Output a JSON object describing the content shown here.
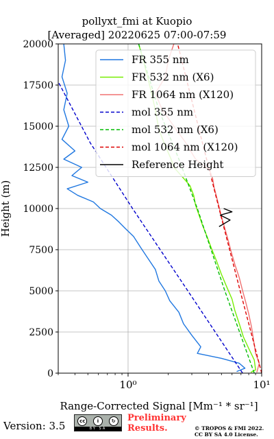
{
  "header": {
    "title": "pollyxt_fmi at Kuopio",
    "subtitle": "[Averaged] 20220625 07:00-07:59"
  },
  "footer": {
    "version": "Version: 3.5",
    "license_badge_text": "BY SA",
    "preliminary_line1": "Preliminary",
    "preliminary_line2": "Results.",
    "copyright_line1": "© TROPOS & FMI 2022.",
    "copyright_line2": "CC BY SA 4.0 License."
  },
  "chart_data": {
    "type": "line",
    "xlabel": "Range-Corrected Signal [Mm⁻¹ * sr⁻¹]",
    "ylabel": "Height (m)",
    "xscale": "log",
    "xlim": [
      0.3,
      10
    ],
    "ylim": [
      0,
      20000
    ],
    "x_ticks": [
      1,
      10
    ],
    "x_tick_labels": [
      "10⁰",
      "10¹"
    ],
    "y_ticks": [
      0,
      2500,
      5000,
      7500,
      10000,
      12500,
      15000,
      17500,
      20000
    ],
    "y_tick_labels": [
      "0",
      "2500",
      "5000",
      "7500",
      "10000",
      "12500",
      "15000",
      "17500",
      "20000"
    ],
    "grid": true,
    "legend_position": "top-right",
    "series": [
      {
        "name": "FR 355 nm",
        "style": "solid",
        "color": "#1f77e0",
        "points": [
          [
            6.5,
            100
          ],
          [
            7.5,
            300
          ],
          [
            6.8,
            600
          ],
          [
            5.0,
            900
          ],
          [
            3.3,
            1200
          ],
          [
            3.5,
            1600
          ],
          [
            3.0,
            2300
          ],
          [
            2.6,
            3000
          ],
          [
            2.4,
            3700
          ],
          [
            2.05,
            4400
          ],
          [
            1.9,
            5000
          ],
          [
            1.7,
            5600
          ],
          [
            1.6,
            6300
          ],
          [
            1.4,
            7000
          ],
          [
            1.25,
            7600
          ],
          [
            1.1,
            8300
          ],
          [
            0.95,
            8800
          ],
          [
            0.85,
            9200
          ],
          [
            0.75,
            9600
          ],
          [
            0.62,
            10000
          ],
          [
            0.55,
            10400
          ],
          [
            0.42,
            10800
          ],
          [
            0.35,
            11200
          ],
          [
            0.5,
            11600
          ],
          [
            0.38,
            12000
          ],
          [
            0.45,
            12500
          ],
          [
            0.33,
            13000
          ],
          [
            0.4,
            13500
          ],
          [
            0.32,
            14200
          ],
          [
            0.36,
            15000
          ],
          [
            0.33,
            16000
          ],
          [
            0.35,
            17000
          ],
          [
            0.32,
            18000
          ],
          [
            0.34,
            19000
          ],
          [
            0.33,
            20000
          ]
        ]
      },
      {
        "name": "FR 532 nm (X6)",
        "style": "solid",
        "color": "#77ee00",
        "points": [
          [
            8.3,
            50
          ],
          [
            9.0,
            200
          ],
          [
            8.8,
            800
          ],
          [
            8.0,
            1500
          ],
          [
            7.3,
            2200
          ],
          [
            6.8,
            3000
          ],
          [
            6.3,
            3800
          ],
          [
            6.0,
            4500
          ],
          [
            5.5,
            5200
          ],
          [
            5.0,
            6000
          ],
          [
            4.6,
            6800
          ],
          [
            4.2,
            7600
          ],
          [
            3.9,
            8300
          ],
          [
            3.6,
            9000
          ],
          [
            3.4,
            9600
          ],
          [
            3.2,
            10200
          ],
          [
            3.1,
            10800
          ],
          [
            2.9,
            11400
          ],
          [
            2.5,
            12000
          ],
          [
            2.2,
            12500
          ],
          [
            2.1,
            13000
          ],
          [
            1.9,
            13800
          ],
          [
            1.7,
            14800
          ],
          [
            1.6,
            16000
          ],
          [
            1.45,
            17500
          ],
          [
            1.3,
            19000
          ],
          [
            1.2,
            20000
          ]
        ]
      },
      {
        "name": "FR 1064 nm (X120)",
        "style": "solid",
        "color": "#f07070",
        "points": [
          [
            9.2,
            50
          ],
          [
            9.6,
            600
          ],
          [
            9.0,
            1200
          ],
          [
            8.7,
            2000
          ],
          [
            8.4,
            2800
          ],
          [
            8.0,
            3600
          ],
          [
            7.6,
            4300
          ],
          [
            7.2,
            5000
          ],
          [
            6.8,
            5800
          ],
          [
            6.3,
            6600
          ],
          [
            5.9,
            7400
          ],
          [
            5.6,
            8100
          ],
          [
            5.3,
            8800
          ],
          [
            5.0,
            9500
          ],
          [
            4.8,
            10100
          ],
          [
            4.6,
            10700
          ],
          [
            4.4,
            11300
          ],
          [
            4.3,
            11800
          ],
          [
            4.1,
            12300
          ],
          [
            3.2,
            13000
          ],
          [
            2.7,
            14000
          ],
          [
            2.2,
            15000
          ],
          [
            1.8,
            16000
          ],
          [
            1.6,
            17000
          ],
          [
            1.9,
            18000
          ],
          [
            2.0,
            19000
          ],
          [
            2.2,
            20000
          ]
        ]
      },
      {
        "name": "mol 355 nm",
        "style": "dashed",
        "color": "#0000cc",
        "points": [
          [
            7.2,
            0
          ],
          [
            2.8,
            5000
          ],
          [
            1.08,
            10000
          ],
          [
            0.52,
            14000
          ],
          [
            0.3,
            17700
          ]
        ]
      },
      {
        "name": "mol 532 nm (X6)",
        "style": "dashed",
        "color": "#00bb00",
        "points": [
          [
            8.8,
            0
          ],
          [
            5.3,
            5000
          ],
          [
            3.3,
            10000
          ],
          [
            2.4,
            13000
          ],
          [
            1.7,
            16000
          ],
          [
            1.2,
            20000
          ]
        ]
      },
      {
        "name": "mol 1064 nm (X120)",
        "style": "dashed",
        "color": "#dd0000",
        "points": [
          [
            10.0,
            0
          ],
          [
            6.9,
            5000
          ],
          [
            4.8,
            10000
          ],
          [
            3.35,
            15000
          ],
          [
            2.35,
            20000
          ]
        ]
      },
      {
        "name": "Reference Height",
        "style": "solid",
        "color": "#000000",
        "points": [
          [
            4.8,
            8900
          ],
          [
            5.8,
            9300
          ],
          [
            4.9,
            9600
          ],
          [
            6.0,
            9800
          ],
          [
            5.2,
            10000
          ]
        ]
      }
    ]
  }
}
